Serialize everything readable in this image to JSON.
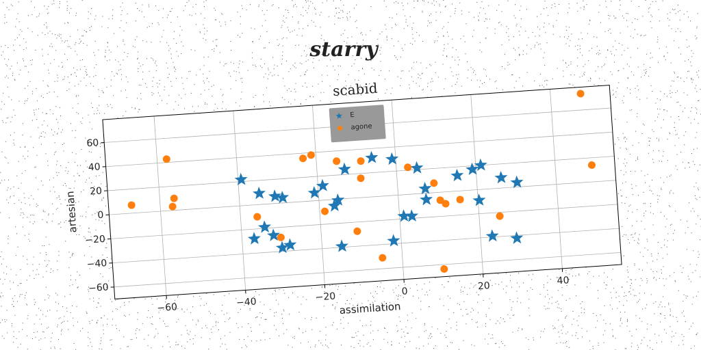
{
  "page_title": "starry",
  "chart_data": {
    "type": "scatter",
    "title": "scabid",
    "x_label": "assimilation",
    "y_label": "artesian",
    "xlim": [
      -73,
      55
    ],
    "ylim": [
      -70,
      79
    ],
    "xticks": [
      {
        "value": -60,
        "label": "−60"
      },
      {
        "value": -40,
        "label": "−40"
      },
      {
        "value": -20,
        "label": "−20"
      },
      0,
      20,
      40
    ],
    "yticks": [
      {
        "value": -60,
        "label": "−60"
      },
      {
        "value": -40,
        "label": "−40"
      },
      {
        "value": -20,
        "label": "−20"
      },
      0,
      20,
      40,
      60
    ],
    "grid": true,
    "legend_position": "upper center",
    "series": [
      {
        "name": "E",
        "color": "#1f77b4",
        "marker": "star",
        "x": [
          -39.2,
          -34.9,
          -31,
          -29.1,
          -34.1,
          -36.9,
          -32,
          -30,
          -28,
          -21,
          -18.8,
          -16.2,
          -15.2,
          -13,
          -15,
          -6,
          -0.9,
          -1.9,
          1.1,
          3.1,
          5.2,
          6.9,
          7,
          15.2,
          19.1,
          21.3,
          20.3,
          26.2,
          30.1,
          23,
          29.1
        ],
        "values": [
          21.6,
          9.2,
          6,
          4.4,
          -19,
          -28,
          -26.3,
          -37,
          -35.2,
          6.6,
          11.9,
          -5.3,
          -0.9,
          24.3,
          -39.2,
          32.4,
          30.1,
          -37.6,
          -17.7,
          -18.2,
          21.3,
          3.8,
          -5.3,
          12.8,
          17.1,
          20,
          -8.9,
          8.6,
          3.8,
          -39.2,
          -42.3
        ]
      },
      {
        "name": "agone",
        "color": "#ff7f0e",
        "marker": "circle",
        "x": [
          -67.2,
          -57.6,
          -56.4,
          -56.9,
          -35.8,
          -30.2,
          -23.3,
          -21.2,
          -14.9,
          -18.7,
          -8.8,
          -9.1,
          -10.9,
          -5,
          2.9,
          9.2,
          10.5,
          11.8,
          15.5,
          10.3,
          25.2,
          47.6,
          49.2
        ],
        "values": [
          6.7,
          42.8,
          9.9,
          3.2,
          -10,
          -28.4,
          35.7,
          38,
          31.5,
          -9.3,
          30.2,
          16,
          -27.6,
          -51,
          22.4,
          7.9,
          -6.6,
          -9.8,
          -7.2,
          -63.7,
          -23.1,
          73.6,
          13.9
        ]
      }
    ]
  }
}
